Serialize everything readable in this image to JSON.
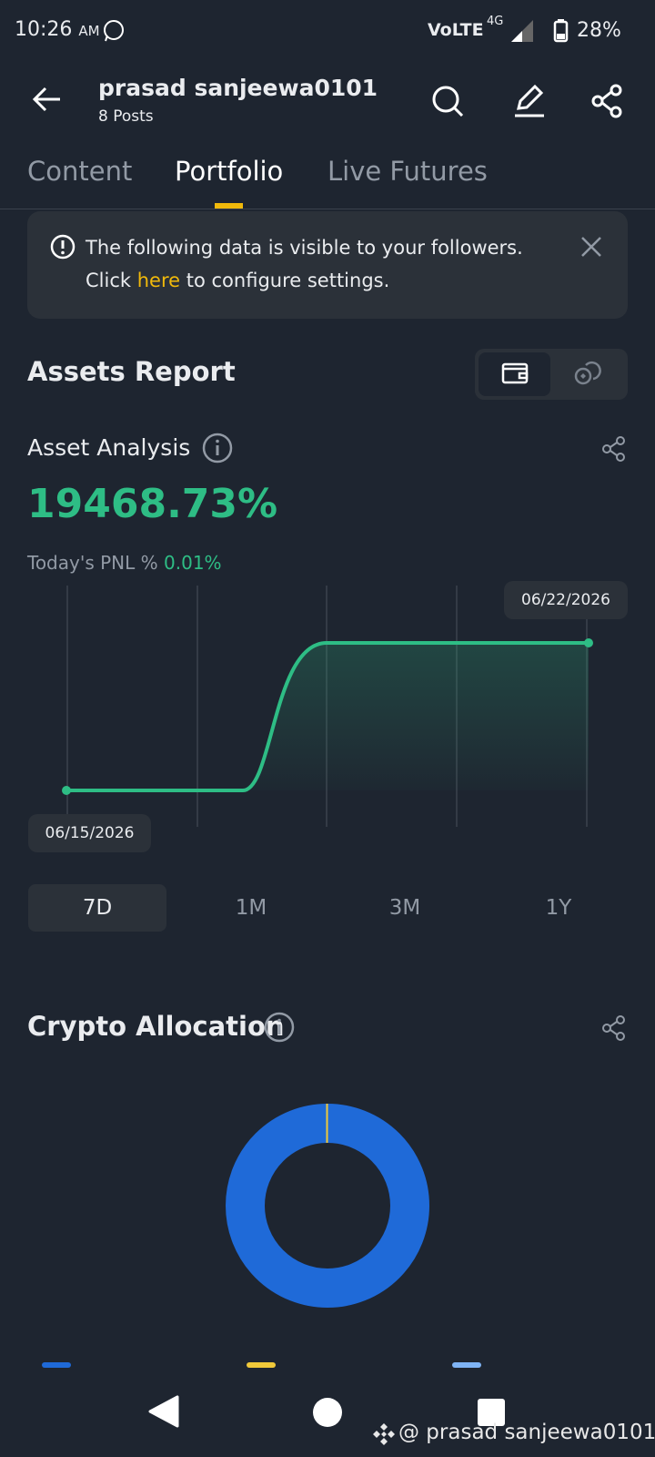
{
  "status_bar": {
    "time": "10:26",
    "ampm": "AM",
    "network": "VoLTE",
    "signal": "4G",
    "battery": "28%"
  },
  "header": {
    "name": "prasad sanjeewa0101",
    "posts": "8 Posts"
  },
  "tabs": [
    "Content",
    "Portfolio",
    "Live Futures"
  ],
  "notice": {
    "line1": "The following data is visible to your followers.",
    "prefix": "Click",
    "link": "here",
    "suffix": "to configure settings."
  },
  "assets_report": {
    "title": "Assets Report"
  },
  "asset_analysis": {
    "title": "Asset Analysis",
    "value": "19468.73%",
    "pnl_label": "Today's PNL %",
    "pnl_value": "0.01%",
    "start_date": "06/15/2026",
    "end_date": "06/22/2026",
    "periods": [
      "7D",
      "1M",
      "3M",
      "1Y"
    ]
  },
  "crypto_allocation": {
    "title": "Crypto Allocation"
  },
  "watermark": "@ prasad sanjeewa0101"
}
